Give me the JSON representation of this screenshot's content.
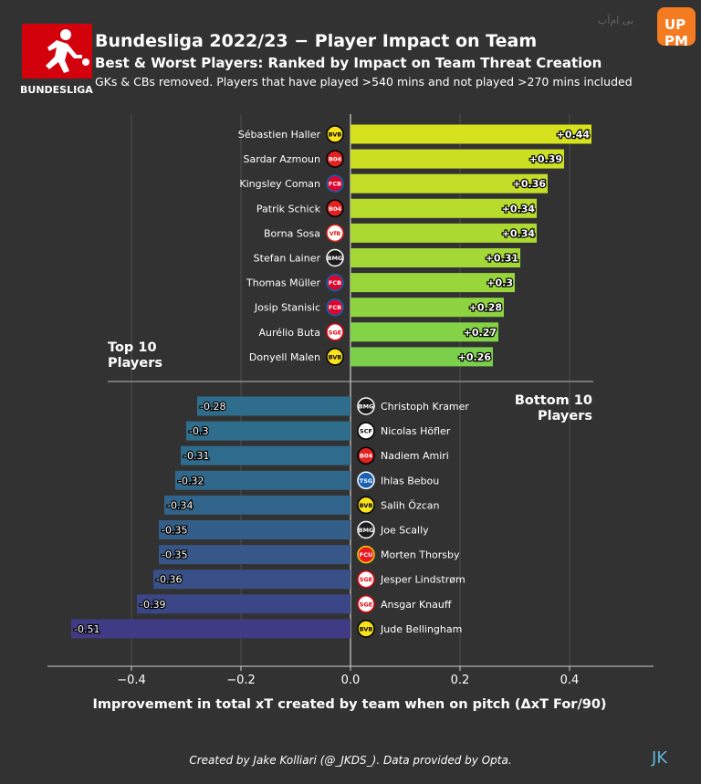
{
  "header": {
    "logo_text": "BUNDESLIGA",
    "title": "Bundesliga 2022/23 − Player Impact on Team",
    "subtitle": "Best & Worst Players: Ranked by Impact on Team Threat Creation",
    "note": "GKs & CBs removed. Players that have played  >540 mins and not played >270 mins included"
  },
  "watermark": {
    "badge": "UP PM",
    "text": "بی ام‌آپ"
  },
  "footer": {
    "credit": "Created by Jake Kolliari (@_JKDS_). Data provided by Opta.",
    "signature": "JK"
  },
  "chart_data": {
    "type": "bar",
    "orientation": "horizontal",
    "xlabel": "Improvement in total xT created by team when on pitch (ΔxT For/90)",
    "xlim": [
      -0.55,
      0.55
    ],
    "xticks": [
      -0.4,
      -0.2,
      0.0,
      0.2,
      0.4
    ],
    "xtick_labels": [
      "−0.4",
      "−0.2",
      "0.0",
      "0.2",
      "0.4"
    ],
    "grid": "vertical gridlines",
    "top_label": "Top 10\nPlayers",
    "bottom_label": "Bottom 10\nPlayers",
    "top_players": [
      {
        "name": "Sébastien Haller",
        "club": "dortmund",
        "value": 0.44,
        "label": "+0.44"
      },
      {
        "name": "Sardar Azmoun",
        "club": "leverkusen",
        "value": 0.39,
        "label": "+0.39"
      },
      {
        "name": "Kingsley Coman",
        "club": "bayern",
        "value": 0.36,
        "label": "+0.36"
      },
      {
        "name": "Patrik Schick",
        "club": "leverkusen",
        "value": 0.34,
        "label": "+0.34"
      },
      {
        "name": "Borna Sosa",
        "club": "stuttgart",
        "value": 0.34,
        "label": "+0.34"
      },
      {
        "name": "Stefan Lainer",
        "club": "gladbach",
        "value": 0.31,
        "label": "+0.31"
      },
      {
        "name": "Thomas Müller",
        "club": "bayern",
        "value": 0.3,
        "label": "+0.3"
      },
      {
        "name": "Josip Stanisic",
        "club": "bayern",
        "value": 0.28,
        "label": "+0.28"
      },
      {
        "name": "Aurélio Buta",
        "club": "frankfurt",
        "value": 0.27,
        "label": "+0.27"
      },
      {
        "name": "Donyell Malen",
        "club": "dortmund",
        "value": 0.26,
        "label": "+0.26"
      }
    ],
    "bottom_players": [
      {
        "name": "Christoph Kramer",
        "club": "gladbach",
        "value": -0.28,
        "label": "-0.28"
      },
      {
        "name": "Nicolas Höfler",
        "club": "freiburg",
        "value": -0.3,
        "label": "-0.3"
      },
      {
        "name": "Nadiem Amiri",
        "club": "leverkusen",
        "value": -0.31,
        "label": "-0.31"
      },
      {
        "name": "Ihlas Bebou",
        "club": "hoffenheim",
        "value": -0.32,
        "label": "-0.32"
      },
      {
        "name": "Salih Özcan",
        "club": "dortmund",
        "value": -0.34,
        "label": "-0.34"
      },
      {
        "name": "Joe Scally",
        "club": "gladbach",
        "value": -0.35,
        "label": "-0.35"
      },
      {
        "name": "Morten Thorsby",
        "club": "union",
        "value": -0.35,
        "label": "-0.35"
      },
      {
        "name": "Jesper Lindstrøm",
        "club": "frankfurt",
        "value": -0.36,
        "label": "-0.36"
      },
      {
        "name": "Ansgar Knauff",
        "club": "frankfurt",
        "value": -0.39,
        "label": "-0.39"
      },
      {
        "name": "Jude Bellingham",
        "club": "dortmund",
        "value": -0.51,
        "label": "-0.51"
      }
    ],
    "colors": {
      "background": "#323232",
      "top_gradient": [
        "#d6e21e",
        "#7ad04a"
      ],
      "bottom_gradient": [
        "#2e6e8c",
        "#3f3b84"
      ],
      "grid": "#555555",
      "axis": "#cfcfcf"
    },
    "club_badges": {
      "dortmund": {
        "fill": "#f9e11e",
        "stroke": "#000000",
        "text": "BVB",
        "color": "#000000"
      },
      "leverkusen": {
        "fill": "#e32221",
        "stroke": "#000000",
        "text": "B04",
        "color": "#ffffff"
      },
      "bayern": {
        "fill": "#dc052d",
        "stroke": "#0066b2",
        "text": "FCB",
        "color": "#ffffff"
      },
      "stuttgart": {
        "fill": "#ffffff",
        "stroke": "#e32219",
        "text": "VfB",
        "color": "#e32219"
      },
      "gladbach": {
        "fill": "#1c1c1c",
        "stroke": "#ffffff",
        "text": "BMG",
        "color": "#ffffff"
      },
      "frankfurt": {
        "fill": "#ffffff",
        "stroke": "#e1000f",
        "text": "SGE",
        "color": "#e1000f"
      },
      "freiburg": {
        "fill": "#ffffff",
        "stroke": "#000000",
        "text": "SCF",
        "color": "#000000"
      },
      "hoffenheim": {
        "fill": "#1961b5",
        "stroke": "#ffffff",
        "text": "TSG",
        "color": "#ffffff"
      },
      "union": {
        "fill": "#eb1923",
        "stroke": "#f5d100",
        "text": "FCU",
        "color": "#ffffff"
      }
    }
  }
}
